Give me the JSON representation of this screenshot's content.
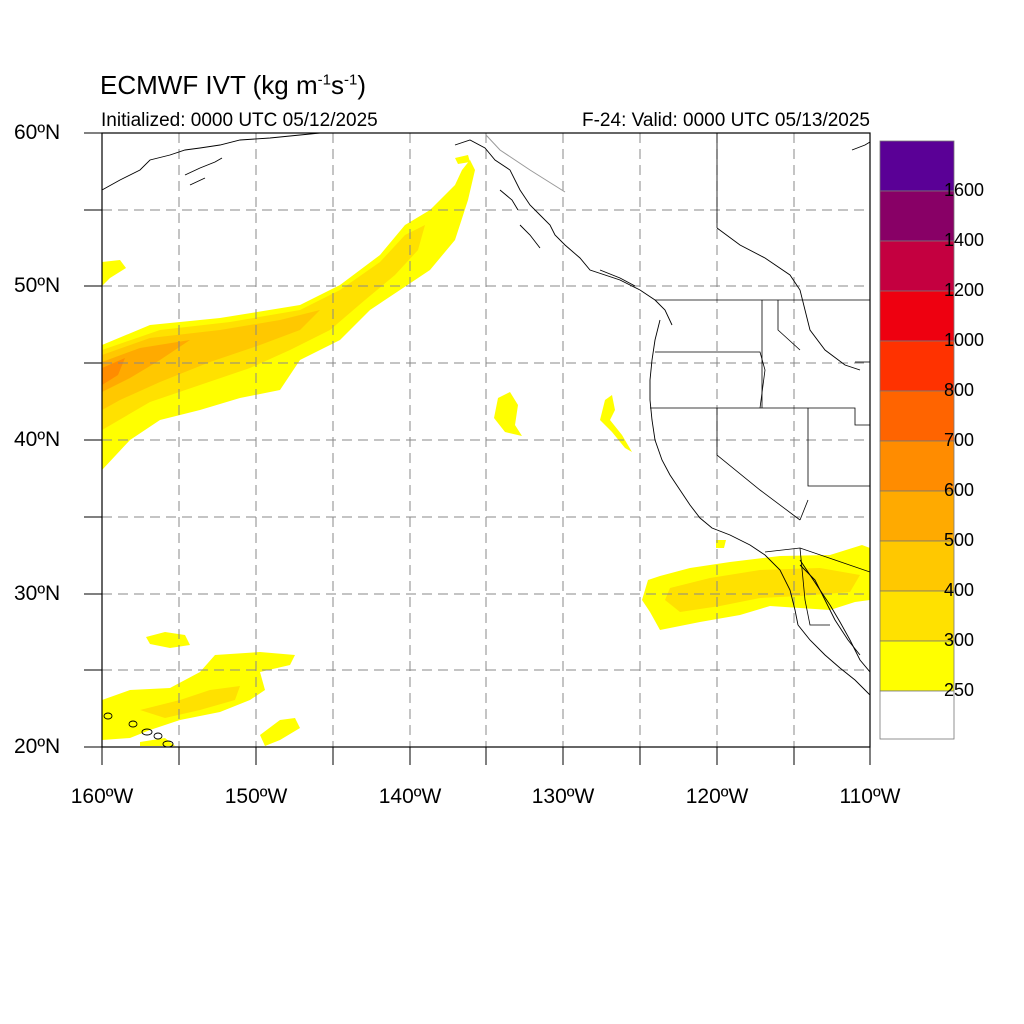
{
  "header": {
    "title_prefix": "ECMWF IVT (kg m",
    "title_exp1": "-1",
    "title_mid": "s",
    "title_exp2": "-1",
    "title_suffix": ")",
    "initialized": "Initialized: 0000 UTC 05/12/2025",
    "valid": "F-24: Valid: 0000 UTC 05/13/2025"
  },
  "map": {
    "lon_range": [
      -160,
      -110
    ],
    "lat_range": [
      20,
      60
    ],
    "lat_labels": [
      "20ºN",
      "30ºN",
      "40ºN",
      "50ºN",
      "60ºN"
    ],
    "lon_labels": [
      "160ºW",
      "150ºW",
      "140ºW",
      "130ºW",
      "120ºW",
      "110ºW"
    ],
    "grid": "dashed every 5 degrees"
  },
  "colorbar": {
    "labels": [
      "250",
      "300",
      "400",
      "500",
      "600",
      "700",
      "800",
      "1000",
      "1200",
      "1400",
      "1600"
    ],
    "colors": [
      "#ffffff",
      "#ffff00",
      "#ffe100",
      "#ffc800",
      "#ffaa00",
      "#ff8c00",
      "#ff6400",
      "#ff3200",
      "#ee0010",
      "#c40040",
      "#880066",
      "#5a0096"
    ]
  }
}
